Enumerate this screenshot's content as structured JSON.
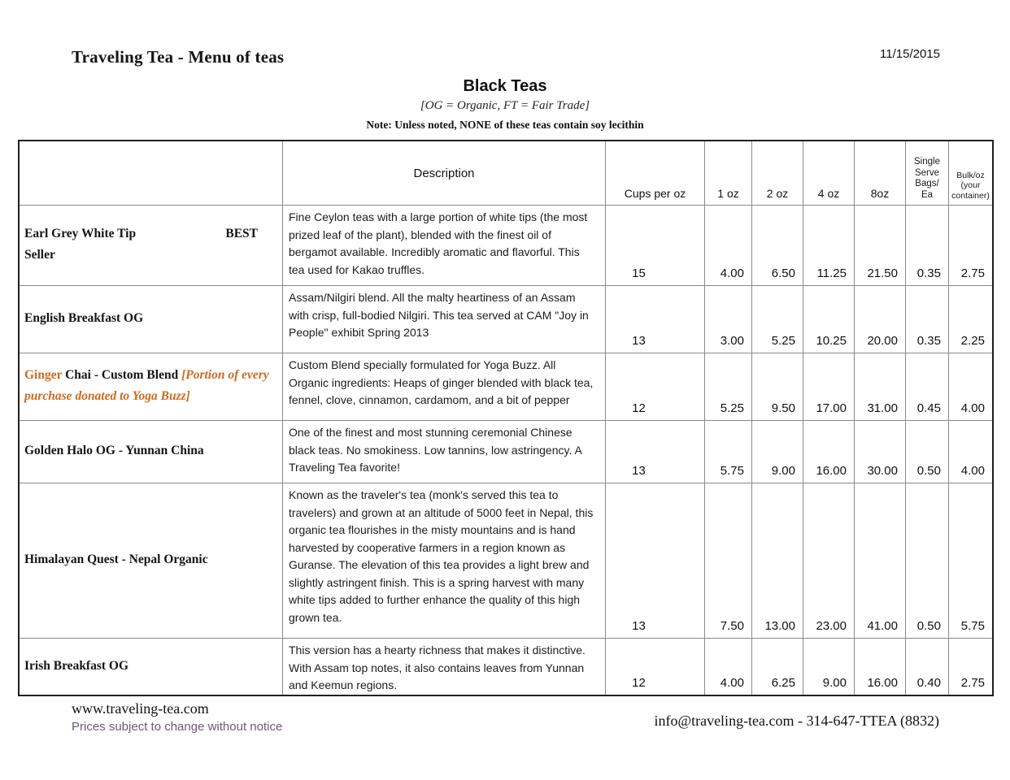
{
  "header": {
    "title": "Traveling Tea - Menu of teas",
    "date": "11/15/2015",
    "section_title": "Black Teas",
    "legend": "[OG = Organic, FT = Fair Trade]",
    "note": "Note: Unless noted, NONE of these teas contain soy lecithin"
  },
  "table": {
    "headers": {
      "description": "Description",
      "cups": "Cups per oz",
      "oz1": "1 oz",
      "oz2": "2 oz",
      "oz4": "4 oz",
      "oz8": "8oz",
      "bags_l1": "Single",
      "bags_l2": "Serve",
      "bags_l3": "Bags/",
      "bags_l4": "Ea",
      "bulk_l1": "Bulk/oz",
      "bulk_l2": "(your",
      "bulk_l3": "container)"
    },
    "rows": [
      {
        "name": "Earl Grey White Tip",
        "badge_top": "BEST",
        "badge_bottom": "Seller",
        "desc": "Fine Ceylon teas with a large portion of white tips (the most prized leaf of the plant), blended with the finest oil of bergamot available.  Incredibly aromatic and flavorful.  This tea used for Kakao truffles.",
        "cups": "15",
        "oz1": "4.00",
        "oz2": "6.50",
        "oz4": "11.25",
        "oz8": "21.50",
        "bags": "0.35",
        "bulk": "2.75"
      },
      {
        "name": "English Breakfast OG",
        "desc": "Assam/Nilgiri blend.  All the malty heartiness of an Assam with crisp, full-bodied Nilgiri.  This tea served at CAM \"Joy in People\" exhibit Spring 2013",
        "cups": "13",
        "oz1": "3.00",
        "oz2": "5.25",
        "oz4": "10.25",
        "oz8": "20.00",
        "bags": "0.35",
        "bulk": "2.25"
      },
      {
        "name_accent": "Ginger",
        "name": "Chai - Custom Blend",
        "name_note": "[Portion of every purchase donated to Yoga Buzz]",
        "desc": "Custom Blend specially formulated for Yoga Buzz. All Organic ingredients: Heaps of ginger blended with black tea, fennel, clove, cinnamon, cardamom, and a bit of pepper",
        "cups": "12",
        "oz1": "5.25",
        "oz2": "9.50",
        "oz4": "17.00",
        "oz8": "31.00",
        "bags": "0.45",
        "bulk": "4.00"
      },
      {
        "name": "Golden Halo OG - Yunnan China",
        "desc": "One of the finest and most stunning ceremonial Chinese black teas.  No smokiness.  Low tannins, low astringency.  A Traveling Tea favorite!",
        "cups": "13",
        "oz1": "5.75",
        "oz2": "9.00",
        "oz4": "16.00",
        "oz8": "30.00",
        "bags": "0.50",
        "bulk": "4.00"
      },
      {
        "name": "Himalayan Quest - Nepal  Organic",
        "desc": "Known as the traveler's tea (monk's served this tea to travelers) and grown at an altitude of 5000 feet in Nepal, this organic tea flourishes in the misty mountains and is hand harvested by cooperative farmers in a region known as Guranse. The elevation of this tea provides a light brew and slightly astringent finish. This is a spring harvest with many white tips added to further enhance the quality of this high grown tea.",
        "cups": "13",
        "oz1": "7.50",
        "oz2": "13.00",
        "oz4": "23.00",
        "oz8": "41.00",
        "bags": "0.50",
        "bulk": "5.75"
      },
      {
        "name": "Irish Breakfast OG",
        "desc": "This version has a hearty richness that makes it distinctive. With Assam top notes, it also contains leaves from Yunnan and Keemun regions.",
        "cups": "12",
        "oz1": "4.00",
        "oz2": "6.25",
        "oz4": "9.00",
        "oz8": "16.00",
        "bags": "0.40",
        "bulk": "2.75"
      }
    ]
  },
  "footer": {
    "website": "www.traveling-tea.com",
    "disclaimer": "Prices subject to change without notice",
    "contact": "info@traveling-tea.com - 314-647-TTEA (8832)"
  },
  "colors": {
    "accent_orange": "#CE6A1E",
    "footer_purple": "#6E5878"
  }
}
